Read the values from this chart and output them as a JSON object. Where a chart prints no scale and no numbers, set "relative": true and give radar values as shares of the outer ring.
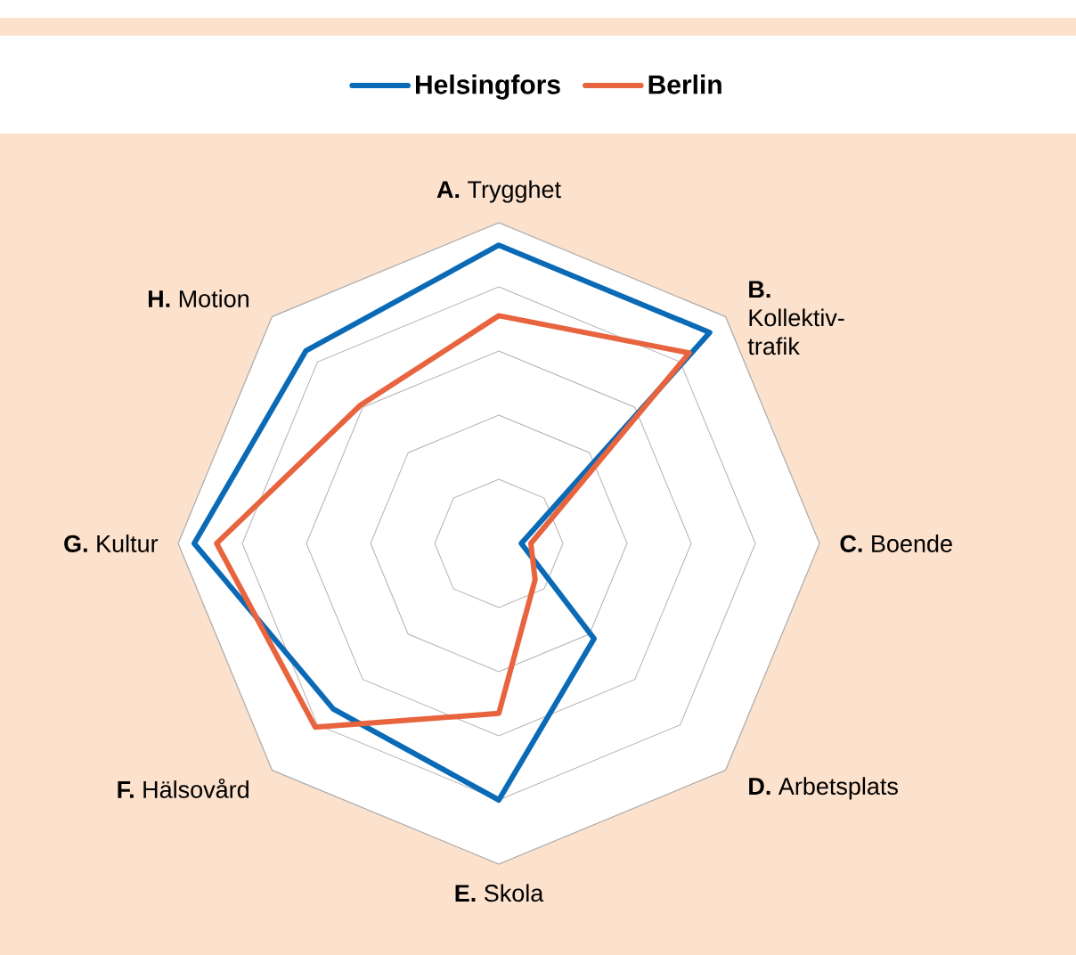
{
  "chart_data": {
    "type": "radar",
    "relative": true,
    "grid": true,
    "legend": "top",
    "marker": "none",
    "line_style": "solid",
    "categories": [
      "**A.** Trygghet",
      "**B.** Kollektiv-trafik",
      "**C.** Boende",
      "**D.** Arbetsplats",
      "**E.** Skola",
      "**F.** Hälsovård",
      "**G.** Kultur",
      "**H.** Motion"
    ],
    "series": [
      {
        "name": "Helsingfors",
        "color": "#0a6ab6",
        "values": [
          0.93,
          0.93,
          0.07,
          0.42,
          0.8,
          0.73,
          0.95,
          0.85
        ]
      },
      {
        "name": "Berlin",
        "color": "#e8643f",
        "values": [
          0.71,
          0.84,
          0.1,
          0.16,
          0.53,
          0.81,
          0.88,
          0.61
        ]
      }
    ]
  }
}
